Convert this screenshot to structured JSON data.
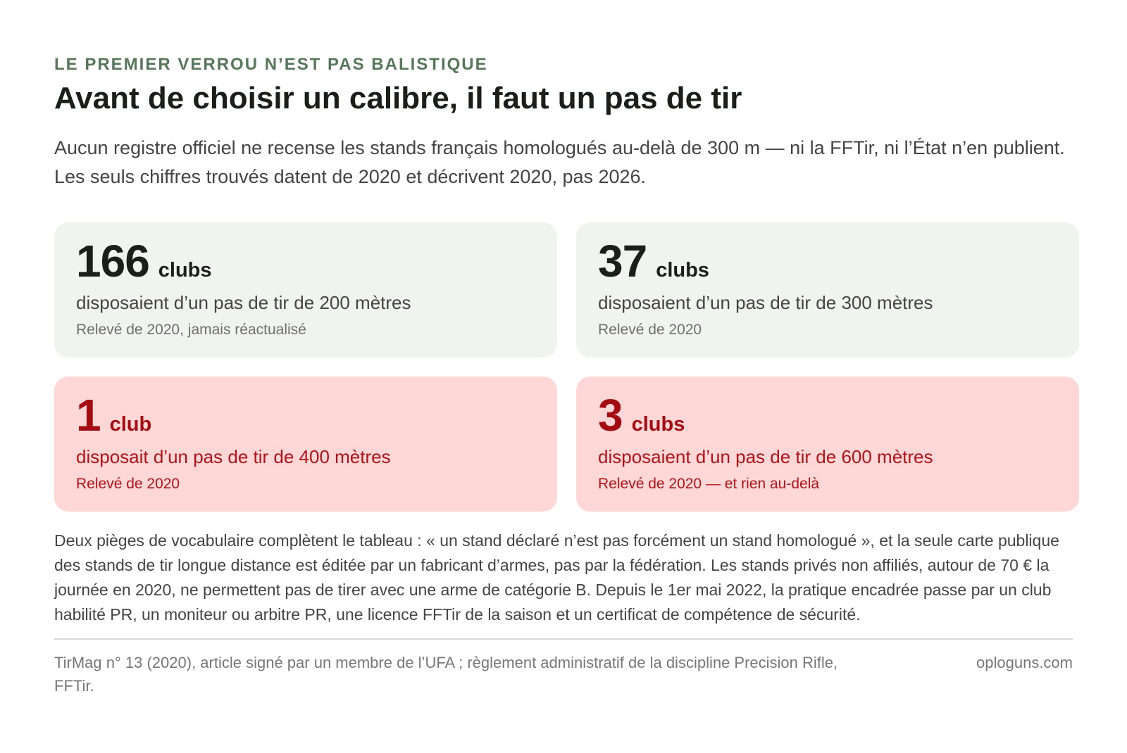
{
  "header": {
    "eyebrow": "LE PREMIER VERROU N’EST PAS BALISTIQUE",
    "title": "Avant de choisir un calibre, il faut un pas de tir",
    "lede": "Aucun registre officiel ne recense les stands français homologués au-delà de 300 m — ni la FFTir, ni l’État n’en publient. Les seuls chiffres trouvés datent de 2020 et décrivent 2020, pas 2026."
  },
  "cards": [
    {
      "number": "166",
      "unit": "clubs",
      "description": "disposaient d’un pas de tir de 200 mètres",
      "note": "Relevé de 2020, jamais réactualisé",
      "tone": "neutral"
    },
    {
      "number": "37",
      "unit": "clubs",
      "description": "disposaient d’un pas de tir de 300 mètres",
      "note": "Relevé de 2020",
      "tone": "neutral"
    },
    {
      "number": "1",
      "unit": "club",
      "description": "disposait d’un pas de tir de 400 mètres",
      "note": "Relevé de 2020",
      "tone": "alert"
    },
    {
      "number": "3",
      "unit": "clubs",
      "description": "disposaient d’un pas de tir de 600 mètres",
      "note": "Relevé de 2020 — et rien au-delà",
      "tone": "alert"
    }
  ],
  "body": "Deux pièges de vocabulaire complètent le tableau : « un stand déclaré n’est pas forcément un stand homologué », et la seule carte publique des stands de tir longue distance est éditée par un fabricant d’armes, pas par la fédération. Les stands privés non affiliés, autour de 70 € la journée en 2020, ne permettent pas de tirer avec une arme de catégorie B. Depuis le 1er mai 2022, la pratique encadrée passe par un club habilité PR, un moniteur ou arbitre PR, une licence FFTir de la saison et un certificat de compétence de sécurité.",
  "footer": {
    "source": "TirMag n° 13 (2020), article signé par un membre de l’UFA ; règlement administratif de la discipline Precision Rifle, FFTir.",
    "credit": "oploguns.com"
  },
  "colors": {
    "eyebrow": "#587659",
    "neutral_card": "#f1f3ee",
    "alert_card": "#fed7d6",
    "alert_text": "#a30c12"
  }
}
